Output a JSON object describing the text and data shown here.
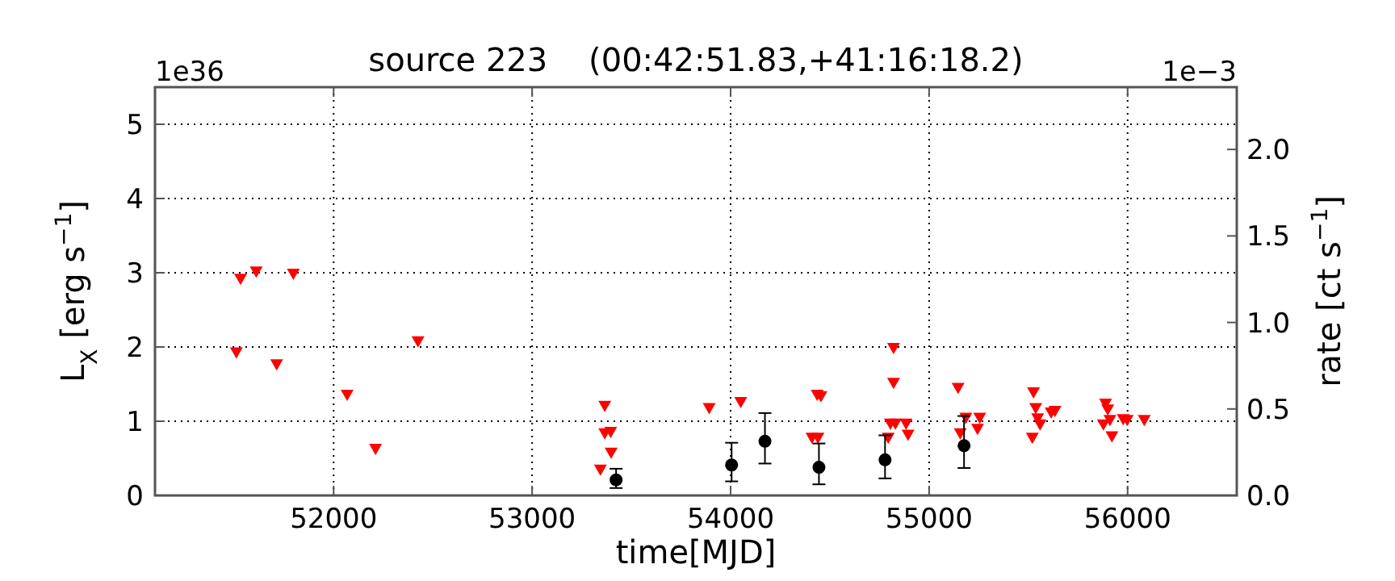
{
  "chart_data": {
    "type": "scatter",
    "title": "source 223    (00:42:51.83,+41:16:18.2)",
    "xlabel": "time[MJD]",
    "ylabel": "L$_{X}$ [erg s$^{−1}$]",
    "y2label": "rate [ct s$^{−1}$]",
    "annotations": [
      "1e36",
      "1e−3"
    ],
    "xlim": [
      51100,
      56550
    ],
    "xticks": [
      52000,
      53000,
      54000,
      55000,
      56000
    ],
    "ylim": [
      0,
      5.5
    ],
    "yticks": [
      0,
      1,
      2,
      3,
      4,
      5
    ],
    "y2lim": [
      0,
      2.36
    ],
    "y2ticks": [
      {
        "value": 0,
        "label": "0.0"
      },
      {
        "value": 0.5,
        "label": "0.5"
      },
      {
        "value": 1,
        "label": "1.0"
      },
      {
        "value": 1.5,
        "label": "1.5"
      },
      {
        "value": 2,
        "label": "2.0"
      }
    ],
    "grid": true,
    "series": [
      {
        "color": "#ff0000",
        "marker": "triangle",
        "x": [
          51510,
          51531,
          51610,
          51713,
          51797,
          52068,
          52211,
          52425,
          53344,
          53366,
          53366,
          53396,
          53398,
          53892,
          54051,
          54410,
          54440,
          54436,
          54455,
          54794,
          54805,
          54821,
          54821,
          54830,
          54884,
          54894,
          55146,
          55157,
          55185,
          55244,
          55255,
          55520,
          55526,
          55537,
          55547,
          55559,
          55615,
          55634,
          55878,
          55889,
          55900,
          55911,
          55921,
          55978,
          55998,
          56084
        ],
        "values": [
          1.93,
          2.92,
          3.02,
          1.77,
          2.99,
          1.36,
          0.63,
          2.08,
          0.35,
          1.21,
          0.84,
          0.86,
          0.58,
          1.18,
          1.26,
          0.78,
          0.78,
          1.36,
          1.34,
          0.78,
          0.97,
          1.99,
          1.52,
          0.97,
          0.97,
          0.82,
          1.45,
          0.84,
          1.05,
          0.9,
          1.05,
          0.78,
          1.39,
          1.18,
          1.04,
          0.96,
          1.12,
          1.14,
          0.96,
          1.24,
          1.16,
          1.02,
          0.8,
          1.03,
          1.02,
          1.02
        ]
      },
      {
        "color": "#000000",
        "marker": "circle",
        "x": [
          53423,
          54005,
          54173,
          54445,
          54778,
          55176
        ],
        "values": [
          0.21,
          0.41,
          0.73,
          0.38,
          0.48,
          0.67
        ],
        "errors": [
          [
            0.1,
            0.36
          ],
          [
            0.19,
            0.71
          ],
          [
            0.43,
            1.11
          ],
          [
            0.15,
            0.7
          ],
          [
            0.23,
            0.81
          ],
          [
            0.37,
            1.07
          ]
        ]
      }
    ]
  }
}
